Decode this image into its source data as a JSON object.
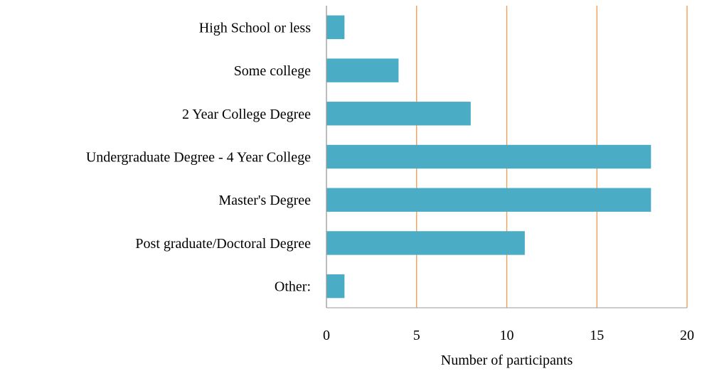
{
  "chart_data": {
    "type": "bar",
    "orientation": "horizontal",
    "categories": [
      "High School or less",
      "Some college",
      "2 Year College Degree",
      "Undergraduate Degree - 4 Year College",
      "Master's Degree",
      "Post graduate/Doctoral Degree",
      "Other:"
    ],
    "values": [
      1,
      4,
      8,
      18,
      18,
      11,
      1
    ],
    "xlabel": "Number of participants",
    "xlim": [
      0,
      20
    ],
    "xticks": [
      "0",
      "5",
      "10",
      "15",
      "20"
    ],
    "grid": "vertical",
    "colors": {
      "bar": "#4bacc6",
      "grid": "#f79646",
      "axis": "#999999"
    }
  }
}
